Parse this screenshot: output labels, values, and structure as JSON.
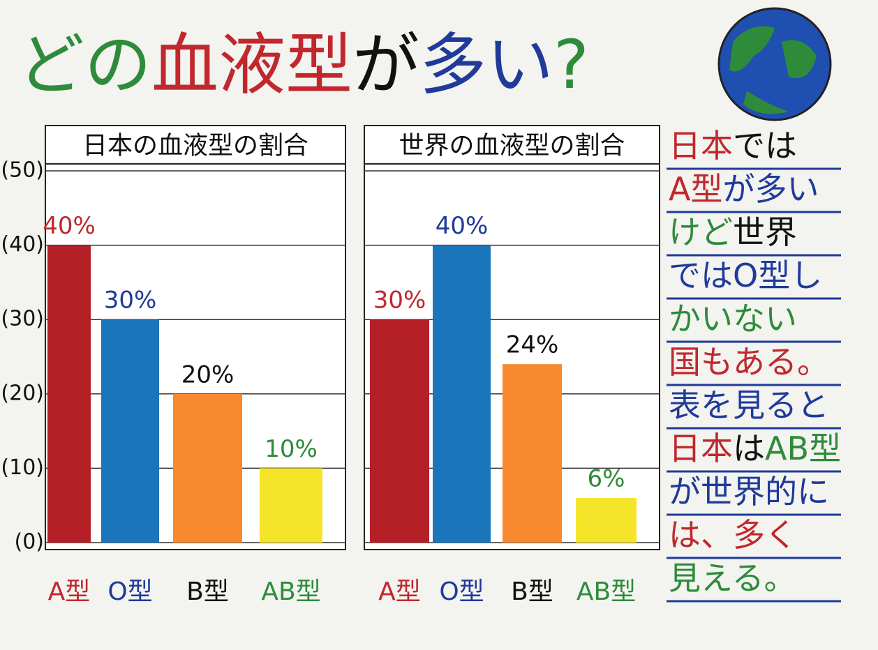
{
  "poster_title": [
    {
      "text": "どの",
      "color": "#2e8b3a"
    },
    {
      "text": "血液型",
      "color": "#c0282d"
    },
    {
      "text": "が",
      "color": "#111111"
    },
    {
      "text": "多い",
      "color": "#1f3a9a"
    },
    {
      "text": "?",
      "color": "#2e8b3a"
    }
  ],
  "note_lines": [
    [
      {
        "text": "日本",
        "color": "#c0282d"
      },
      {
        "text": "では",
        "color": "#111111"
      }
    ],
    [
      {
        "text": "A型",
        "color": "#c0282d"
      },
      {
        "text": "が多い",
        "color": "#1f3a9a"
      }
    ],
    [
      {
        "text": "けど",
        "color": "#2e8b3a"
      },
      {
        "text": "世界",
        "color": "#111111"
      }
    ],
    [
      {
        "text": "では",
        "color": "#1f3a9a"
      },
      {
        "text": "O型し",
        "color": "#1f3a9a"
      }
    ],
    [
      {
        "text": "かいない",
        "color": "#2e8b3a"
      }
    ],
    [
      {
        "text": "国もある。",
        "color": "#c0282d"
      }
    ],
    [
      {
        "text": "表を見ると",
        "color": "#1f3a9a"
      }
    ],
    [
      {
        "text": "日本",
        "color": "#c0282d"
      },
      {
        "text": "は",
        "color": "#111111"
      },
      {
        "text": "AB型",
        "color": "#2e8b3a"
      }
    ],
    [
      {
        "text": "が世界的に",
        "color": "#1f3a9a"
      }
    ],
    [
      {
        "text": "は、多く",
        "color": "#c0282d"
      }
    ],
    [
      {
        "text": "見える。",
        "color": "#2e8b3a"
      }
    ]
  ],
  "chart_data": [
    {
      "type": "bar",
      "title": "日本の血液型の割合",
      "categories": [
        "A型",
        "O型",
        "B型",
        "AB型"
      ],
      "values": [
        40,
        30,
        20,
        10
      ],
      "value_labels": [
        "40%",
        "30%",
        "20%",
        "10%"
      ],
      "colors": [
        "#b52026",
        "#1a75bb",
        "#f7892f",
        "#f5e52a"
      ],
      "label_colors": [
        "#c0282d",
        "#1f3a9a",
        "#111111",
        "#2e8b3a"
      ],
      "ylim": [
        0,
        50
      ],
      "yticks": [
        {
          "value": 0,
          "label": "(0)"
        },
        {
          "value": 10,
          "label": "(10)"
        },
        {
          "value": 20,
          "label": "(20)"
        },
        {
          "value": 30,
          "label": "(30)"
        },
        {
          "value": 40,
          "label": "(40)"
        },
        {
          "value": 50,
          "label": "(50)"
        }
      ],
      "grid": true
    },
    {
      "type": "bar",
      "title": "世界の血液型の割合",
      "categories": [
        "A型",
        "O型",
        "B型",
        "AB型"
      ],
      "values": [
        30,
        40,
        24,
        6
      ],
      "value_labels": [
        "30%",
        "40%",
        "24%",
        "6%"
      ],
      "colors": [
        "#b52026",
        "#1a75bb",
        "#f7892f",
        "#f5e52a"
      ],
      "label_colors": [
        "#c0282d",
        "#1f3a9a",
        "#111111",
        "#2e8b3a"
      ],
      "ylim": [
        0,
        50
      ],
      "grid": true
    }
  ]
}
